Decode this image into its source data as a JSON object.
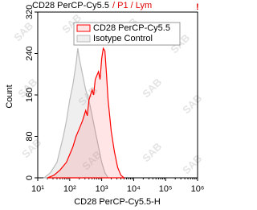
{
  "chart_data": {
    "type": "line",
    "title": "CD28 PerCP-Cy5.5",
    "subtitle": "/ P1 / Lym",
    "flag": "!",
    "watermark": "SAB",
    "x_label": "CD28 PerCP-Cy5.5-H",
    "y_label": "Count",
    "x_scale": "log",
    "xlim": [
      10,
      1000000
    ],
    "ylim": [
      0,
      320
    ],
    "xticks": [
      {
        "value": 10,
        "label": "10¹"
      },
      {
        "value": 100,
        "label": "10²"
      },
      {
        "value": 1000,
        "label": "10³"
      },
      {
        "value": 10000,
        "label": "10⁴"
      },
      {
        "value": 100000,
        "label": "10⁵"
      },
      {
        "value": 1000000,
        "label": "10⁶"
      }
    ],
    "yticks": [
      0,
      80,
      160,
      240,
      320
    ],
    "legend": "upper-center",
    "series": [
      {
        "name": "Isotype Control",
        "color": "#bbbbbb",
        "fill": "rgba(190,190,190,0.25)",
        "x": [
          16,
          25,
          40,
          63,
          79,
          100,
          126,
          158,
          178,
          200,
          251,
          316,
          398,
          501,
          631,
          794,
          1000,
          1259,
          1585
        ],
        "values": [
          0,
          10,
          30,
          80,
          110,
          150,
          180,
          220,
          250,
          230,
          200,
          170,
          150,
          120,
          90,
          60,
          30,
          10,
          0
        ]
      },
      {
        "name": "CD28 PerCP-Cy5.5",
        "color": "#ff0000",
        "fill": "rgba(255,0,0,0.1)",
        "x": [
          20,
          32,
          50,
          79,
          100,
          126,
          158,
          200,
          251,
          316,
          355,
          398,
          501,
          562,
          631,
          794,
          891,
          1000,
          1122,
          1259,
          1413,
          1585,
          1995,
          2512,
          3162,
          3981,
          5012
        ],
        "values": [
          0,
          5,
          15,
          30,
          45,
          60,
          80,
          95,
          110,
          130,
          120,
          150,
          170,
          160,
          190,
          205,
          190,
          230,
          250,
          245,
          200,
          150,
          90,
          50,
          20,
          5,
          0
        ]
      }
    ]
  }
}
